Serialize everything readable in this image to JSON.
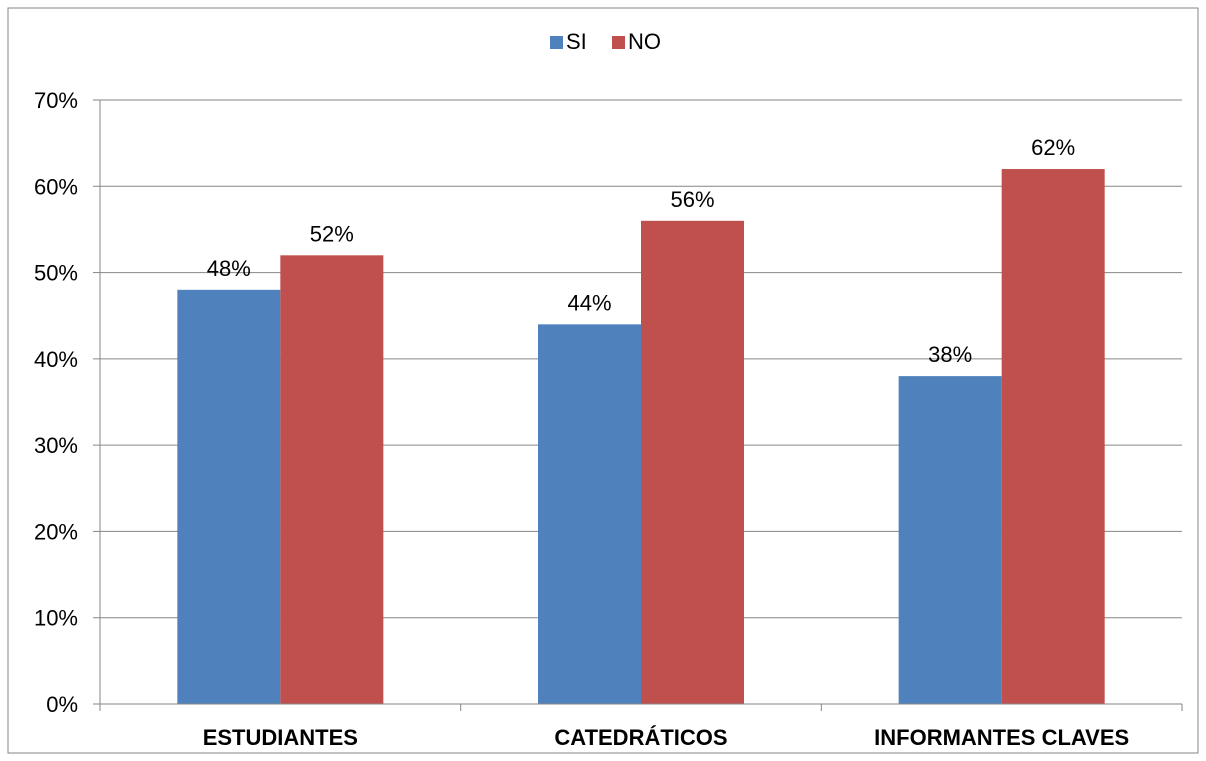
{
  "colors": {
    "si": "#4F81BD",
    "no": "#C0504D",
    "grid": "#868686",
    "axis": "#868686",
    "border": "#868686"
  },
  "legend": {
    "position": "top-center",
    "items": [
      {
        "label": "SI",
        "color": "#4F81BD"
      },
      {
        "label": "NO",
        "color": "#C0504D"
      }
    ]
  },
  "chart_data": {
    "type": "bar",
    "title": "",
    "xlabel": "",
    "ylabel": "",
    "categories": [
      "ESTUDIANTES",
      "CATEDRÁTICOS",
      "INFORMANTES CLAVES"
    ],
    "series": [
      {
        "name": "SI",
        "values": [
          48,
          44,
          38
        ],
        "labels": [
          "48%",
          "44%",
          "38%"
        ]
      },
      {
        "name": "NO",
        "values": [
          52,
          56,
          62
        ],
        "labels": [
          "52%",
          "56%",
          "62%"
        ]
      }
    ],
    "ylim": [
      0,
      70
    ],
    "yticks": [
      0,
      10,
      20,
      30,
      40,
      50,
      60,
      70
    ],
    "ytick_labels": [
      "0%",
      "10%",
      "20%",
      "30%",
      "40%",
      "50%",
      "60%",
      "70%"
    ],
    "grid": true,
    "legend": "top-center"
  }
}
